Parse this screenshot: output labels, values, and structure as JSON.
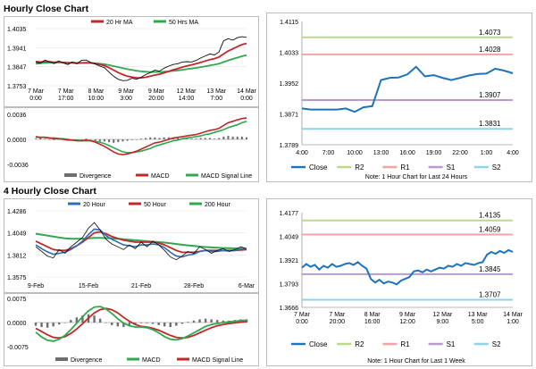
{
  "sections": {
    "hourly_title": "Hourly Close Chart",
    "four_hourly_title": "4 Hourly Close Chart"
  },
  "colors": {
    "price": "#0b0b0b",
    "ma_red": "#c0282b",
    "ma_green": "#2fa84f",
    "ma_blue": "#2f6db5",
    "close_line": "#1e73be",
    "r2": "#bcd98b",
    "r1": "#f2a3a3",
    "s1": "#b89ad0",
    "s2": "#8fd3e6",
    "divergence": "#6e6e6e",
    "macd": "#c0282b",
    "signal": "#2fa84f"
  },
  "chart_data": [
    {
      "id": "hourly_price",
      "type": "line",
      "title": "",
      "x_ticks": [
        "7 Mar\n0:00",
        "7 Mar\n17:00",
        "8 Mar\n10:00",
        "9 Mar\n3:00",
        "9 Mar\n20:00",
        "12 Mar\n14:00",
        "13 Mar\n7:00",
        "14 Mar\n0:00"
      ],
      "y_ticks": [
        "1.3753",
        "1.3847",
        "1.3941",
        "1.4035"
      ],
      "ylim": [
        1.3753,
        1.4035
      ],
      "legend": [
        {
          "name": "20 Hr MA",
          "color": "#c0282b"
        },
        {
          "name": "50 Hrs MA",
          "color": "#2fa84f"
        }
      ],
      "series": [
        {
          "name": "Close",
          "values": [
            1.387,
            1.3865,
            1.388,
            1.3872,
            1.3862,
            1.3875,
            1.3866,
            1.3858,
            1.387,
            1.3862,
            1.3878,
            1.388,
            1.3868,
            1.386,
            1.385,
            1.3842,
            1.382,
            1.38,
            1.3785,
            1.3778,
            1.378,
            1.379,
            1.3785,
            1.3795,
            1.3808,
            1.3818,
            1.383,
            1.3825,
            1.384,
            1.385,
            1.3858,
            1.3862,
            1.387,
            1.3872,
            1.387,
            1.3878,
            1.389,
            1.39,
            1.391,
            1.3905,
            1.392,
            1.3975,
            1.3985,
            1.3978,
            1.399,
            1.3995,
            1.3992
          ]
        },
        {
          "name": "20 Hr MA",
          "values": [
            1.3872,
            1.387,
            1.3872,
            1.3871,
            1.3869,
            1.387,
            1.3868,
            1.3866,
            1.3866,
            1.3864,
            1.3866,
            1.3867,
            1.3866,
            1.3863,
            1.3858,
            1.3852,
            1.3842,
            1.383,
            1.3818,
            1.3808,
            1.38,
            1.3796,
            1.3792,
            1.3792,
            1.3795,
            1.38,
            1.3806,
            1.381,
            1.3817,
            1.3824,
            1.3832,
            1.3838,
            1.3845,
            1.3851,
            1.3856,
            1.3862,
            1.3868,
            1.3875,
            1.3882,
            1.3887,
            1.3895,
            1.391,
            1.3925,
            1.3935,
            1.3946,
            1.3956,
            1.3962
          ]
        },
        {
          "name": "50 Hrs MA",
          "values": [
            1.3862,
            1.3864,
            1.3866,
            1.3867,
            1.3867,
            1.3868,
            1.3868,
            1.3867,
            1.3867,
            1.3866,
            1.3866,
            1.3866,
            1.3865,
            1.3864,
            1.3862,
            1.3859,
            1.3855,
            1.385,
            1.3845,
            1.384,
            1.3835,
            1.3831,
            1.3827,
            1.3824,
            1.3822,
            1.3821,
            1.3821,
            1.3821,
            1.3822,
            1.3824,
            1.3826,
            1.3829,
            1.3832,
            1.3835,
            1.3838,
            1.3841,
            1.3845,
            1.3849,
            1.3853,
            1.3857,
            1.3862,
            1.387,
            1.3878,
            1.3885,
            1.3892,
            1.3899,
            1.3904
          ]
        }
      ]
    },
    {
      "id": "hourly_macd",
      "type": "bar",
      "title": "",
      "y_ticks": [
        "-0.0036",
        "0.0000",
        "0.0036"
      ],
      "ylim": [
        -0.0036,
        0.0036
      ],
      "legend": [
        {
          "name": "Divergence",
          "color": "#6e6e6e"
        },
        {
          "name": "MACD",
          "color": "#c0282b"
        },
        {
          "name": "MACD Signal Line",
          "color": "#2fa84f"
        }
      ],
      "divergence": [
        0.0001,
        0.0002,
        0.0001,
        0.0,
        -0.0001,
        0.0,
        0.0001,
        0.0001,
        0.0,
        -0.0001,
        0.0,
        0.0001,
        0.0,
        -0.0002,
        -0.0003,
        -0.0003,
        -0.0004,
        -0.0005,
        -0.0004,
        -0.0003,
        -0.0002,
        -0.0001,
        0.0,
        0.0001,
        0.0002,
        0.0003,
        0.0003,
        0.0002,
        0.0003,
        0.0003,
        0.0002,
        0.0002,
        0.0002,
        0.0001,
        0.0001,
        0.0001,
        0.0002,
        0.0002,
        0.0002,
        0.0001,
        0.0002,
        0.0004,
        0.0005,
        0.0004,
        0.0004,
        0.0004,
        0.0003
      ],
      "series": [
        {
          "name": "MACD",
          "values": [
            0.0004,
            0.0003,
            0.0003,
            0.0002,
            0.0001,
            0.0001,
            0.0,
            -0.0001,
            -0.0001,
            -0.0002,
            -0.0002,
            -0.0001,
            -0.0002,
            -0.0004,
            -0.0007,
            -0.001,
            -0.0014,
            -0.0018,
            -0.0021,
            -0.0022,
            -0.0021,
            -0.0019,
            -0.0017,
            -0.0014,
            -0.0011,
            -0.0008,
            -0.0005,
            -0.0004,
            -0.0002,
            0.0,
            0.0002,
            0.0003,
            0.0004,
            0.0005,
            0.0006,
            0.0007,
            0.0009,
            0.0011,
            0.0013,
            0.0014,
            0.0016,
            0.002,
            0.0024,
            0.0026,
            0.0028,
            0.003,
            0.0031
          ]
        },
        {
          "name": "MACD Signal Line",
          "values": [
            0.0003,
            0.0003,
            0.0003,
            0.0002,
            0.0002,
            0.0001,
            0.0001,
            0.0,
            -0.0001,
            -0.0001,
            -0.0002,
            -0.0002,
            -0.0002,
            -0.0003,
            -0.0004,
            -0.0006,
            -0.0009,
            -0.0012,
            -0.0015,
            -0.0018,
            -0.0019,
            -0.0019,
            -0.0018,
            -0.0017,
            -0.0015,
            -0.0013,
            -0.001,
            -0.0008,
            -0.0006,
            -0.0004,
            -0.0002,
            -0.0001,
            0.0001,
            0.0002,
            0.0003,
            0.0004,
            0.0005,
            0.0007,
            0.0008,
            0.001,
            0.0012,
            0.0014,
            0.0017,
            0.0019,
            0.0021,
            0.0024,
            0.0026
          ]
        }
      ]
    },
    {
      "id": "hourly_24h",
      "type": "line",
      "title": "",
      "note": "Note: 1 Hour Chart for Last 24 Hours",
      "x_ticks": [
        "4:00",
        "7:00",
        "10:00",
        "13:00",
        "16:00",
        "19:00",
        "22:00",
        "1:00",
        "4:00"
      ],
      "y_ticks": [
        "1.3789",
        "1.3871",
        "1.3952",
        "1.4033",
        "1.4115"
      ],
      "ylim": [
        1.3789,
        1.4115
      ],
      "levels": [
        {
          "name": "R2",
          "value": 1.4073,
          "label": "1.4073"
        },
        {
          "name": "R1",
          "value": 1.4028,
          "label": "1.4028"
        },
        {
          "name": "S1",
          "value": 1.3907,
          "label": "1.3907"
        },
        {
          "name": "S2",
          "value": 1.3831,
          "label": "1.3831"
        }
      ],
      "legend": [
        "Close",
        "R2",
        "R1",
        "S1",
        "S2"
      ],
      "series": [
        {
          "name": "Close",
          "values": [
            1.3885,
            1.3882,
            1.3882,
            1.3882,
            1.3882,
            1.3885,
            1.3876,
            1.3888,
            1.3891,
            1.396,
            1.3966,
            1.3967,
            1.3975,
            1.3995,
            1.397,
            1.3973,
            1.3966,
            1.396,
            1.3966,
            1.3972,
            1.3976,
            1.3977,
            1.399,
            1.3985,
            1.3978
          ]
        }
      ]
    },
    {
      "id": "four_hourly_price",
      "type": "line",
      "title": "",
      "x_ticks": [
        "9-Feb",
        "15-Feb",
        "21-Feb",
        "28-Feb",
        "6-Mar"
      ],
      "y_ticks": [
        "1.3575",
        "1.3812",
        "1.4049",
        "1.4286"
      ],
      "ylim": [
        1.3575,
        1.4286
      ],
      "legend": [
        {
          "name": "20 Hour",
          "color": "#2f6db5"
        },
        {
          "name": "50 Hour",
          "color": "#c0282b"
        },
        {
          "name": "200 Hour",
          "color": "#2fa84f"
        }
      ],
      "series": [
        {
          "name": "Close",
          "values": [
            1.39,
            1.385,
            1.38,
            1.378,
            1.387,
            1.383,
            1.39,
            1.395,
            1.4,
            1.41,
            1.416,
            1.408,
            1.398,
            1.393,
            1.39,
            1.387,
            1.392,
            1.388,
            1.395,
            1.39,
            1.396,
            1.392,
            1.386,
            1.379,
            1.376,
            1.38,
            1.385,
            1.383,
            1.39,
            1.387,
            1.383,
            1.386,
            1.388,
            1.385,
            1.387,
            1.39,
            1.388
          ]
        },
        {
          "name": "20 Hour",
          "values": [
            1.392,
            1.388,
            1.3845,
            1.382,
            1.383,
            1.384,
            1.387,
            1.391,
            1.396,
            1.403,
            1.409,
            1.408,
            1.402,
            1.398,
            1.395,
            1.392,
            1.391,
            1.39,
            1.392,
            1.392,
            1.393,
            1.392,
            1.389,
            1.384,
            1.38,
            1.379,
            1.381,
            1.382,
            1.385,
            1.386,
            1.385,
            1.385,
            1.386,
            1.3855,
            1.386,
            1.3875,
            1.388
          ]
        },
        {
          "name": "50 Hour",
          "values": [
            1.396,
            1.393,
            1.39,
            1.387,
            1.386,
            1.386,
            1.388,
            1.391,
            1.395,
            1.4,
            1.405,
            1.406,
            1.404,
            1.401,
            1.399,
            1.397,
            1.396,
            1.395,
            1.395,
            1.395,
            1.395,
            1.394,
            1.392,
            1.389,
            1.386,
            1.384,
            1.384,
            1.384,
            1.385,
            1.386,
            1.386,
            1.386,
            1.386,
            1.386,
            1.386,
            1.3865,
            1.387
          ]
        },
        {
          "name": "200 Hour",
          "values": [
            1.404,
            1.403,
            1.402,
            1.401,
            1.4,
            1.399,
            1.3985,
            1.3985,
            1.3985,
            1.399,
            1.3995,
            1.3995,
            1.3993,
            1.399,
            1.3985,
            1.398,
            1.3975,
            1.397,
            1.3965,
            1.396,
            1.3955,
            1.395,
            1.3945,
            1.3938,
            1.393,
            1.3922,
            1.3915,
            1.3908,
            1.3902,
            1.3897,
            1.3893,
            1.3889,
            1.3886,
            1.3884,
            1.3882,
            1.388,
            1.3878
          ]
        }
      ]
    },
    {
      "id": "four_hourly_macd",
      "type": "bar",
      "title": "",
      "y_ticks": [
        "-0.0075",
        "0.0000",
        "0.0075"
      ],
      "ylim": [
        -0.0075,
        0.0075
      ],
      "legend": [
        {
          "name": "Divergence",
          "color": "#6e6e6e"
        },
        {
          "name": "MACD",
          "color": "#2fa84f"
        },
        {
          "name": "MACD Signal Line",
          "color": "#c0282b"
        }
      ],
      "divergence": [
        -0.001,
        -0.0014,
        -0.0016,
        -0.0012,
        -0.0006,
        0.0,
        0.0008,
        0.0016,
        0.0022,
        0.0026,
        0.0022,
        0.0012,
        0.0,
        -0.0008,
        -0.0012,
        -0.0014,
        -0.001,
        -0.0006,
        -0.0002,
        -0.0002,
        -0.0004,
        -0.0008,
        -0.0012,
        -0.0014,
        -0.001,
        -0.0004,
        0.0002,
        0.0006,
        0.001,
        0.0012,
        0.001,
        0.0008,
        0.0006,
        0.0006,
        0.0008,
        0.001,
        0.001
      ],
      "series": [
        {
          "name": "MACD",
          "values": [
            -0.003,
            -0.0045,
            -0.0055,
            -0.0058,
            -0.0052,
            -0.004,
            -0.0022,
            -0.0002,
            0.0018,
            0.0036,
            0.0048,
            0.005,
            0.0042,
            0.0028,
            0.0012,
            -0.0002,
            -0.001,
            -0.0014,
            -0.0014,
            -0.0016,
            -0.0022,
            -0.0032,
            -0.0044,
            -0.0052,
            -0.0054,
            -0.005,
            -0.0042,
            -0.0032,
            -0.0022,
            -0.0012,
            -0.0006,
            -0.0003,
            0.0,
            0.0002,
            0.0004,
            0.0006,
            0.0007
          ]
        },
        {
          "name": "MACD Signal Line",
          "values": [
            -0.0018,
            -0.0028,
            -0.0038,
            -0.0046,
            -0.0048,
            -0.0044,
            -0.0034,
            -0.002,
            -0.0004,
            0.0014,
            0.003,
            0.004,
            0.0044,
            0.004,
            0.003,
            0.0016,
            0.0004,
            -0.0006,
            -0.0012,
            -0.0014,
            -0.0018,
            -0.0024,
            -0.0032,
            -0.004,
            -0.0046,
            -0.0048,
            -0.0046,
            -0.004,
            -0.0032,
            -0.0024,
            -0.0016,
            -0.001,
            -0.0006,
            -0.0003,
            -0.0001,
            0.0001,
            0.0003
          ]
        }
      ]
    },
    {
      "id": "four_hourly_week",
      "type": "line",
      "title": "",
      "note": "Note: 1 Hour Chart for Last 1 Week",
      "x_ticks": [
        "7 Mar\n0:00",
        "7 Mar\n20:00",
        "8 Mar\n16:00",
        "9 Mar\n12:00",
        "12 Mar\n9:00",
        "13 Mar\n5:00",
        "14 Mar\n1:00"
      ],
      "y_ticks": [
        "1.3666",
        "1.3793",
        "1.3921",
        "1.4049",
        "1.4177"
      ],
      "ylim": [
        1.3666,
        1.4177
      ],
      "levels": [
        {
          "name": "R2",
          "value": 1.4135,
          "label": "1.4135"
        },
        {
          "name": "R1",
          "value": 1.4059,
          "label": "1.4059"
        },
        {
          "name": "S1",
          "value": 1.3845,
          "label": "1.3845"
        },
        {
          "name": "S2",
          "value": 1.3707,
          "label": "1.3707"
        }
      ],
      "legend": [
        "Close",
        "R2",
        "R1",
        "S1",
        "S2"
      ],
      "series": [
        {
          "name": "Close",
          "values": [
            1.388,
            1.39,
            1.3885,
            1.3895,
            1.387,
            1.389,
            1.388,
            1.39,
            1.3885,
            1.389,
            1.39,
            1.3905,
            1.3895,
            1.391,
            1.389,
            1.3875,
            1.382,
            1.38,
            1.3815,
            1.3795,
            1.3805,
            1.38,
            1.379,
            1.381,
            1.382,
            1.383,
            1.386,
            1.3865,
            1.3855,
            1.387,
            1.386,
            1.387,
            1.388,
            1.3875,
            1.389,
            1.3885,
            1.39,
            1.389,
            1.3905,
            1.39,
            1.3895,
            1.3905,
            1.391,
            1.395,
            1.3965,
            1.3955,
            1.397,
            1.396,
            1.3975,
            1.3965
          ]
        }
      ]
    }
  ]
}
